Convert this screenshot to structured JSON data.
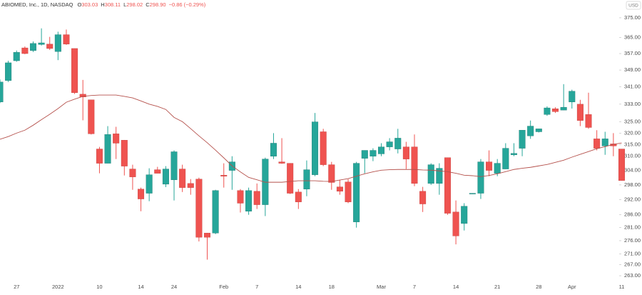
{
  "chart_data": {
    "type": "candlestick",
    "title": "ABIOMED, Inc., 1D, NASDAQ",
    "ohlc_header": [
      {
        "letter": "O",
        "value": "303.03"
      },
      {
        "letter": "H",
        "value": "308.11"
      },
      {
        "letter": "L",
        "value": "298.02"
      },
      {
        "letter": "C",
        "value": "298.90"
      }
    ],
    "change": "−0.86 (−0.29%)",
    "currency": "USD",
    "log_scale": true,
    "up_color": "#26a69a",
    "down_color": "#ef5350",
    "categories": [
      null,
      null,
      "27",
      null,
      null,
      null,
      null,
      "2022",
      null,
      null,
      null,
      null,
      "10",
      null,
      null,
      null,
      null,
      "14",
      null,
      null,
      null,
      "24",
      null,
      null,
      null,
      null,
      null,
      "Feb",
      null,
      null,
      null,
      "7",
      null,
      null,
      null,
      null,
      "14",
      null,
      null,
      null,
      "18",
      null,
      null,
      null,
      null,
      null,
      "Mar",
      null,
      null,
      null,
      "7",
      null,
      null,
      null,
      null,
      "14",
      null,
      null,
      null,
      null,
      "21",
      null,
      null,
      null,
      null,
      "28",
      null,
      null,
      null,
      "Apr",
      null,
      null,
      null,
      null,
      null,
      "11"
    ],
    "open": [
      334,
      344,
      353.5,
      359.8,
      358.5,
      361.5,
      361.7,
      358,
      366.4,
      359.5,
      337.6,
      335,
      313.1,
      307,
      319.7,
      316.9,
      304.6,
      296.3,
      294.6,
      304.3,
      298.3,
      300.1,
      304.6,
      298.6,
      300.4,
      278.9,
      278.9,
      302,
      304,
      295.7,
      287.4,
      295.4,
      290,
      310,
      307.6,
      307,
      295.1,
      296.3,
      302.2,
      320.6,
      306.4,
      297.2,
      299.2,
      283.2,
      309.1,
      310,
      311,
      314,
      313.1,
      314,
      314,
      295.4,
      298.6,
      298.6,
      309.4,
      287.1,
      282.6,
      294.3,
      294.6,
      307.6,
      302.8,
      304.6,
      310.6,
      313.4,
      318.8,
      320.6,
      328.3,
      330.9,
      330.3,
      334,
      333,
      328.3,
      317.5,
      314.4,
      315.3,
      313.1
    ],
    "high": [
      344.5,
      353.5,
      358.5,
      360.5,
      363,
      369.6,
      365.3,
      367.9,
      369,
      359.5,
      344.3,
      335,
      314,
      323.1,
      322.8,
      317,
      306.4,
      296.9,
      304.9,
      305.5,
      305.8,
      312.5,
      306.4,
      300.4,
      301,
      279,
      296,
      307,
      310,
      296.3,
      296.9,
      298.6,
      309.4,
      320,
      317.8,
      307,
      296.3,
      308.2,
      329,
      321.9,
      307.6,
      300.1,
      300.4,
      307.6,
      312.5,
      313.4,
      315.6,
      317.8,
      321.9,
      316.2,
      319.4,
      297.2,
      307,
      307,
      309.4,
      291.7,
      290.6,
      294.6,
      308.8,
      312.5,
      308.8,
      315.6,
      315.6,
      321.3,
      325.6,
      321.9,
      332,
      331.6,
      342.3,
      339.7,
      335,
      338.3,
      321.3,
      320.6,
      320,
      313.1
    ],
    "low": [
      333.5,
      343.3,
      353,
      356.7,
      357.8,
      361,
      358.8,
      353.8,
      361.3,
      337.7,
      325.7,
      319.4,
      302.8,
      307,
      308.8,
      301.9,
      296,
      287.4,
      291.4,
      302.8,
      297.1,
      291.7,
      295.1,
      294,
      275.7,
      268.9,
      278.5,
      296.9,
      296,
      286.9,
      286,
      288.3,
      285.5,
      308.8,
      306.8,
      294.3,
      288.3,
      293.4,
      301.6,
      305.8,
      296,
      294,
      290.6,
      281,
      302.8,
      307.9,
      310,
      312.5,
      311.2,
      304.6,
      297.5,
      287.1,
      298,
      294,
      286,
      274.6,
      279.9,
      294.3,
      292.3,
      301.6,
      301.6,
      304.6,
      310,
      310,
      317.5,
      320.3,
      327.7,
      329,
      330.3,
      331,
      323.1,
      321.9,
      312.5,
      310.6,
      310,
      299.8
    ],
    "close": [
      343.3,
      352.5,
      357.6,
      357,
      362,
      362.3,
      359.5,
      366.4,
      361.7,
      338.3,
      336.3,
      319.7,
      307,
      319.4,
      315.6,
      305.8,
      301.3,
      292.3,
      302.2,
      302.8,
      304.6,
      311.9,
      296.9,
      296.9,
      277.3,
      277.3,
      295.7,
      301.6,
      307.6,
      290.6,
      295.7,
      290,
      308.8,
      315.6,
      307,
      294.6,
      291.1,
      304.3,
      325,
      306.4,
      299,
      295.4,
      291.1,
      307,
      312.5,
      312.5,
      314,
      316.2,
      317.8,
      308.8,
      298.6,
      290.3,
      306.4,
      304.9,
      286.6,
      277.8,
      289.4,
      294.6,
      307.6,
      304,
      307,
      313.4,
      311.2,
      321.3,
      323.1,
      321.9,
      331.3,
      329.6,
      331.6,
      339,
      325.6,
      322.5,
      313.4,
      317.5,
      314.4,
      299.8
    ],
    "ma": {
      "color": "#b5514c",
      "values": [
        317.3,
        318.5,
        320,
        321.3,
        323.5,
        326,
        328.4,
        331,
        333.9,
        335.3,
        336.6,
        337,
        337.2,
        337.2,
        337.2,
        336.6,
        335.9,
        334.5,
        333,
        332,
        330.6,
        327,
        325.1,
        322,
        318.8,
        315.8,
        312.6,
        309.3,
        305.9,
        303.4,
        301.1,
        300.1,
        299.1,
        299.1,
        299.1,
        299.4,
        299.7,
        299.7,
        299.7,
        299.5,
        299.4,
        300,
        300.6,
        301.6,
        302.6,
        303.4,
        304.1,
        304.3,
        304.4,
        304.4,
        304.4,
        304.2,
        304.1,
        303.8,
        303.5,
        302.8,
        302,
        301.8,
        301.4,
        301.9,
        302.6,
        303.5,
        304.4,
        304.9,
        305.3,
        305.9,
        306.5,
        307.4,
        308.3,
        309.6,
        310.8,
        312,
        313.2,
        314.1,
        315.1,
        315.7
      ]
    },
    "ylim": [
      260.7,
      384.3
    ],
    "yticks": [
      {
        "value": 375,
        "label": "375.00"
      },
      {
        "value": 365,
        "label": "365.00"
      },
      {
        "value": 357,
        "label": "357.00"
      },
      {
        "value": 349,
        "label": "349.00"
      },
      {
        "value": 341,
        "label": "341.00"
      },
      {
        "value": 333,
        "label": "333.00"
      },
      {
        "value": 325,
        "label": "325.00"
      },
      {
        "value": 320,
        "label": "320.00"
      },
      {
        "value": 315,
        "label": "315.00"
      },
      {
        "value": 310,
        "label": "310.00"
      },
      {
        "value": 304,
        "label": "304.00"
      },
      {
        "value": 298,
        "label": "298.00"
      },
      {
        "value": 292,
        "label": "292.00"
      },
      {
        "value": 286,
        "label": "286.00"
      },
      {
        "value": 281,
        "label": "281.00"
      },
      {
        "value": 276,
        "label": "276.00"
      },
      {
        "value": 271,
        "label": "271.00"
      },
      {
        "value": 267,
        "label": "267.00"
      },
      {
        "value": 263,
        "label": "263.00"
      }
    ]
  }
}
